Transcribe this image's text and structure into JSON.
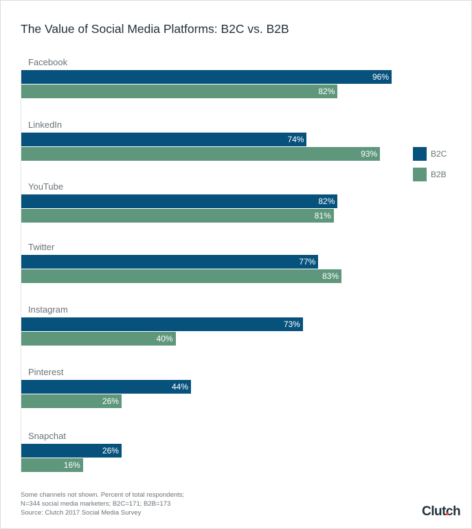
{
  "chart_data": {
    "type": "bar",
    "orientation": "horizontal",
    "title": "The Value of Social Media Platforms: B2C vs. B2B",
    "categories": [
      "Facebook",
      "LinkedIn",
      "YouTube",
      "Twitter",
      "Instagram",
      "Pinterest",
      "Snapchat"
    ],
    "series": [
      {
        "name": "B2C",
        "color": "#07527d",
        "values": [
          96,
          74,
          82,
          77,
          73,
          44,
          26
        ]
      },
      {
        "name": "B2B",
        "color": "#5e977c",
        "values": [
          82,
          93,
          81,
          83,
          40,
          26,
          16
        ]
      }
    ],
    "value_suffix": "%",
    "xlim": [
      0,
      100
    ],
    "grid": false,
    "legend": "right"
  },
  "footnotes": [
    "Some channels not shown. Percent of total respondents;",
    "N=344 social media marketers; B2C=171; B2B=173",
    "Source: Clutch 2017 Social Media Survey"
  ],
  "logo": "Clutch"
}
